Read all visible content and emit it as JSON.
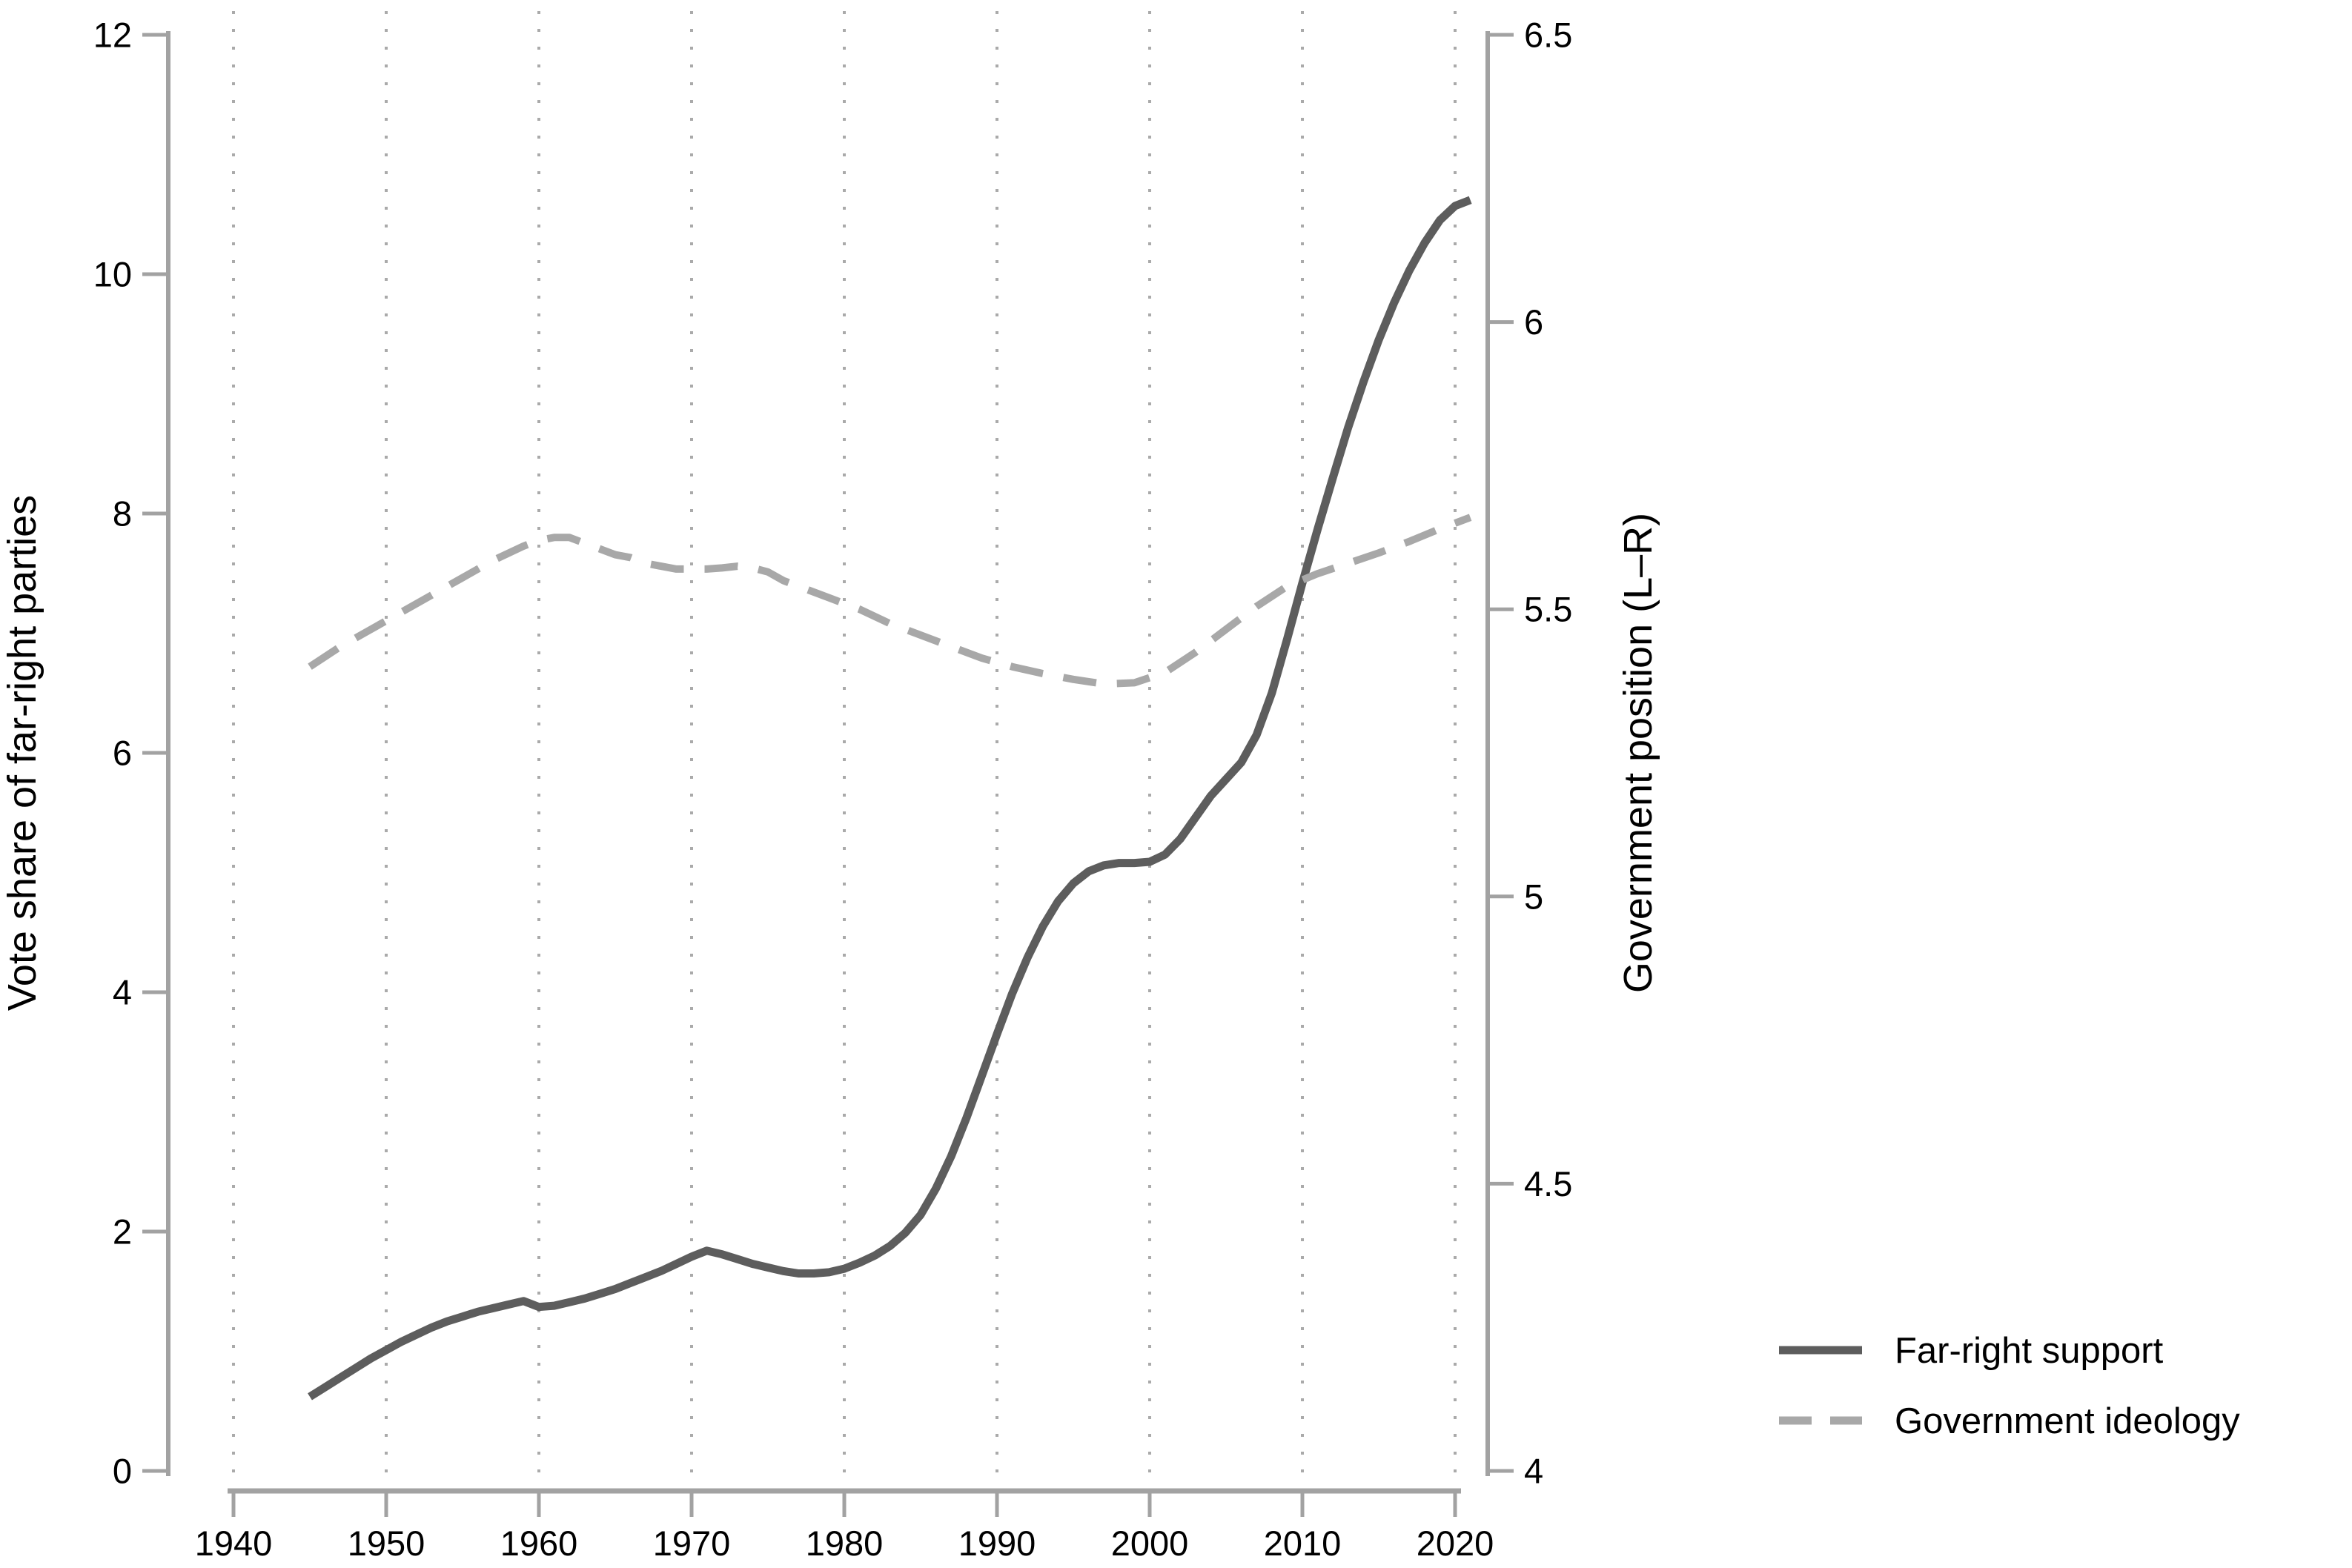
{
  "chart_data": {
    "type": "line",
    "title": "",
    "xlabel": "",
    "ylabel_left": "Vote share of far-right parties",
    "ylabel_right": "Government position (L–R)",
    "x_range": [
      1940,
      2020
    ],
    "x_ticks": [
      1940,
      1950,
      1960,
      1970,
      1980,
      1990,
      2000,
      2010,
      2020
    ],
    "y_left_range": [
      0,
      12
    ],
    "y_left_ticks": [
      0,
      2,
      4,
      6,
      8,
      10,
      12
    ],
    "y_right_range": [
      4,
      6.5
    ],
    "y_right_ticks": [
      4,
      4.5,
      5,
      5.5,
      6,
      6.5
    ],
    "grid": "vertical-dotted",
    "legend_position": "bottom-right",
    "axis_color": "#a2a2a2",
    "gridline_color": "#aaaaaa",
    "series": [
      {
        "name": "Far-right support",
        "axis": "left",
        "style": "solid",
        "color": "#5d5d5d",
        "points": [
          [
            1945,
            0.62
          ],
          [
            1946,
            0.7
          ],
          [
            1947,
            0.78
          ],
          [
            1948,
            0.86
          ],
          [
            1949,
            0.94
          ],
          [
            1950,
            1.01
          ],
          [
            1951,
            1.08
          ],
          [
            1952,
            1.14
          ],
          [
            1953,
            1.2
          ],
          [
            1954,
            1.25
          ],
          [
            1955,
            1.29
          ],
          [
            1956,
            1.33
          ],
          [
            1957,
            1.36
          ],
          [
            1958,
            1.39
          ],
          [
            1959,
            1.42
          ],
          [
            1960,
            1.37
          ],
          [
            1961,
            1.38
          ],
          [
            1962,
            1.41
          ],
          [
            1963,
            1.44
          ],
          [
            1964,
            1.48
          ],
          [
            1965,
            1.52
          ],
          [
            1966,
            1.57
          ],
          [
            1967,
            1.62
          ],
          [
            1968,
            1.67
          ],
          [
            1969,
            1.73
          ],
          [
            1970,
            1.79
          ],
          [
            1971,
            1.84
          ],
          [
            1972,
            1.81
          ],
          [
            1973,
            1.77
          ],
          [
            1974,
            1.73
          ],
          [
            1975,
            1.7
          ],
          [
            1976,
            1.67
          ],
          [
            1977,
            1.65
          ],
          [
            1978,
            1.65
          ],
          [
            1979,
            1.66
          ],
          [
            1980,
            1.69
          ],
          [
            1981,
            1.74
          ],
          [
            1982,
            1.8
          ],
          [
            1983,
            1.88
          ],
          [
            1984,
            1.99
          ],
          [
            1985,
            2.14
          ],
          [
            1986,
            2.36
          ],
          [
            1987,
            2.63
          ],
          [
            1988,
            2.95
          ],
          [
            1989,
            3.3
          ],
          [
            1990,
            3.65
          ],
          [
            1991,
            3.99
          ],
          [
            1992,
            4.29
          ],
          [
            1993,
            4.55
          ],
          [
            1994,
            4.76
          ],
          [
            1995,
            4.91
          ],
          [
            1996,
            5.01
          ],
          [
            1997,
            5.06
          ],
          [
            1998,
            5.08
          ],
          [
            1999,
            5.08
          ],
          [
            2000,
            5.09
          ],
          [
            2001,
            5.15
          ],
          [
            2002,
            5.28
          ],
          [
            2003,
            5.46
          ],
          [
            2004,
            5.64
          ],
          [
            2005,
            5.78
          ],
          [
            2006,
            5.92
          ],
          [
            2007,
            6.15
          ],
          [
            2008,
            6.5
          ],
          [
            2009,
            6.95
          ],
          [
            2010,
            7.42
          ],
          [
            2011,
            7.87
          ],
          [
            2012,
            8.3
          ],
          [
            2013,
            8.72
          ],
          [
            2014,
            9.1
          ],
          [
            2015,
            9.45
          ],
          [
            2016,
            9.76
          ],
          [
            2017,
            10.03
          ],
          [
            2018,
            10.26
          ],
          [
            2019,
            10.45
          ],
          [
            2020,
            10.57
          ],
          [
            2021,
            10.62
          ]
        ]
      },
      {
        "name": "Government ideology",
        "axis": "right",
        "style": "dashed",
        "color": "#a8a8a8",
        "points": [
          [
            1945,
            5.4
          ],
          [
            1947,
            5.435
          ],
          [
            1949,
            5.465
          ],
          [
            1951,
            5.495
          ],
          [
            1953,
            5.525
          ],
          [
            1955,
            5.555
          ],
          [
            1957,
            5.585
          ],
          [
            1959,
            5.61
          ],
          [
            1960,
            5.62
          ],
          [
            1961,
            5.625
          ],
          [
            1962,
            5.625
          ],
          [
            1963,
            5.615
          ],
          [
            1964,
            5.605
          ],
          [
            1965,
            5.595
          ],
          [
            1966,
            5.59
          ],
          [
            1967,
            5.58
          ],
          [
            1968,
            5.575
          ],
          [
            1969,
            5.57
          ],
          [
            1970,
            5.57
          ],
          [
            1971,
            5.57
          ],
          [
            1972,
            5.572
          ],
          [
            1973,
            5.575
          ],
          [
            1974,
            5.572
          ],
          [
            1975,
            5.565
          ],
          [
            1976,
            5.55
          ],
          [
            1977,
            5.54
          ],
          [
            1979,
            5.52
          ],
          [
            1981,
            5.5
          ],
          [
            1983,
            5.475
          ],
          [
            1985,
            5.455
          ],
          [
            1987,
            5.435
          ],
          [
            1989,
            5.415
          ],
          [
            1991,
            5.4
          ],
          [
            1993,
            5.388
          ],
          [
            1995,
            5.378
          ],
          [
            1997,
            5.37
          ],
          [
            1999,
            5.372
          ],
          [
            2001,
            5.39
          ],
          [
            2003,
            5.425
          ],
          [
            2005,
            5.465
          ],
          [
            2007,
            5.505
          ],
          [
            2009,
            5.54
          ],
          [
            2011,
            5.562
          ],
          [
            2013,
            5.58
          ],
          [
            2015,
            5.598
          ],
          [
            2017,
            5.618
          ],
          [
            2019,
            5.64
          ],
          [
            2021,
            5.66
          ]
        ]
      }
    ]
  }
}
